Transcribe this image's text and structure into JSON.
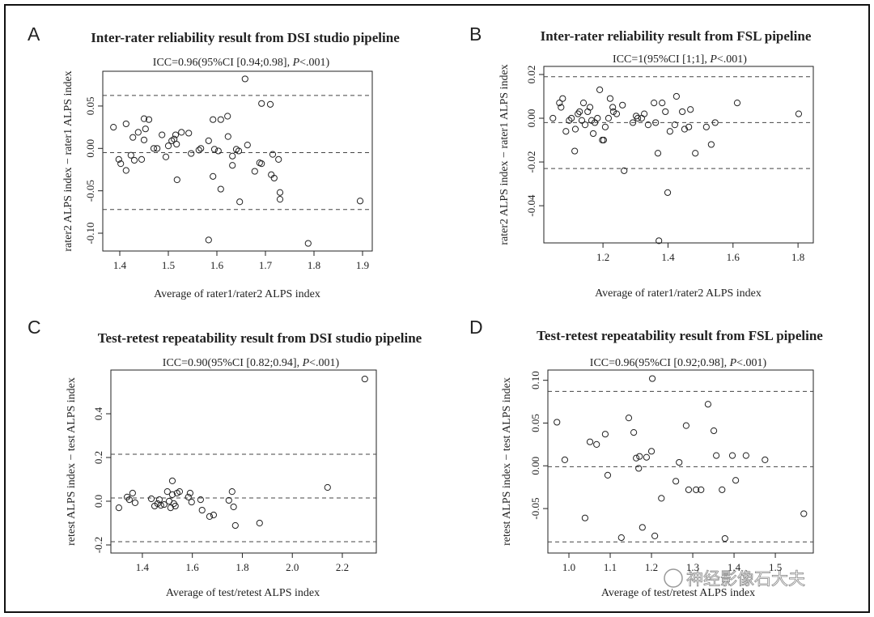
{
  "watermark": "神经影像石大夫",
  "chart_data": [
    {
      "type": "scatter",
      "label": "A",
      "title": "Inter-rater reliability result from DSI studio pipeline",
      "annotation": [
        "ICC=0.96(95%CI [0.94;0.98], ",
        "P",
        "<.001)"
      ],
      "xlabel": "Average of rater1/rater2 ALPS index",
      "ylabel": "rater2 ALPS index − rater1 ALPS index",
      "x": [
        1.387,
        1.398,
        1.402,
        1.413,
        1.413,
        1.423,
        1.427,
        1.43,
        1.438,
        1.445,
        1.45,
        1.45,
        1.453,
        1.46,
        1.47,
        1.477,
        1.487,
        1.495,
        1.5,
        1.507,
        1.512,
        1.515,
        1.517,
        1.518,
        1.527,
        1.542,
        1.547,
        1.563,
        1.567,
        1.583,
        1.583,
        1.592,
        1.592,
        1.595,
        1.603,
        1.608,
        1.608,
        1.622,
        1.623,
        1.632,
        1.632,
        1.64,
        1.645,
        1.647,
        1.658,
        1.663,
        1.678,
        1.688,
        1.692,
        1.692,
        1.71,
        1.712,
        1.718,
        1.715,
        1.727,
        1.73,
        1.73,
        1.788,
        1.895
      ],
      "values": [
        0.025,
        -0.013,
        -0.018,
        0.029,
        -0.026,
        -0.008,
        0.013,
        -0.014,
        0.019,
        -0.013,
        0.035,
        0.01,
        0.023,
        0.034,
        0,
        0,
        0.016,
        -0.01,
        0.003,
        0.009,
        0.011,
        0.016,
        0.005,
        -0.037,
        0.019,
        0.018,
        -0.006,
        -0.002,
        0,
        0.009,
        -0.108,
        -0.033,
        0.034,
        -0.001,
        -0.003,
        -0.048,
        0.034,
        0.038,
        0.014,
        -0.009,
        -0.02,
        -0.001,
        -0.003,
        -0.063,
        0.082,
        0.004,
        -0.027,
        -0.017,
        0.053,
        -0.018,
        0.052,
        -0.031,
        -0.035,
        -0.007,
        -0.013,
        -0.06,
        -0.052,
        -0.112,
        -0.062
      ],
      "hlines": [
        0.0625,
        -0.005,
        -0.072
      ],
      "xlim": [
        1.365,
        1.92
      ],
      "ylim": [
        -0.121,
        0.091
      ],
      "xticks": [
        1.4,
        1.5,
        1.6,
        1.7,
        1.8,
        1.9
      ],
      "yticks": [
        {
          "value": -0.1,
          "label": "-0.10"
        },
        -0.05,
        {
          "value": 0,
          "label": "0.00"
        },
        0.05
      ]
    },
    {
      "type": "scatter",
      "label": "B",
      "title": "Inter-rater reliability result from FSL pipeline",
      "annotation": [
        "ICC=1(95%CI [1;1], ",
        "P",
        "<.001)"
      ],
      "xlabel": "Average of rater1/rater2 ALPS index",
      "ylabel": "rater2 ALPS index − rater1 ALPS index",
      "x": [
        1.046,
        1.066,
        1.071,
        1.076,
        1.086,
        1.096,
        1.103,
        1.113,
        1.115,
        1.123,
        1.128,
        1.135,
        1.14,
        1.145,
        1.153,
        1.16,
        1.165,
        1.17,
        1.175,
        1.183,
        1.19,
        1.198,
        1.202,
        1.207,
        1.217,
        1.222,
        1.23,
        1.232,
        1.242,
        1.26,
        1.265,
        1.292,
        1.302,
        1.307,
        1.319,
        1.327,
        1.339,
        1.357,
        1.362,
        1.369,
        1.372,
        1.382,
        1.392,
        1.399,
        1.406,
        1.421,
        1.426,
        1.444,
        1.451,
        1.464,
        1.469,
        1.484,
        1.518,
        1.533,
        1.545,
        1.613,
        1.802
      ],
      "values": [
        0,
        0.007,
        0.005,
        0.009,
        -0.006,
        -0.001,
        0,
        -0.015,
        -0.005,
        0.002,
        0.003,
        -0.001,
        0.007,
        -0.003,
        0.003,
        0.005,
        -0.001,
        -0.007,
        -0.002,
        0,
        0.013,
        -0.01,
        -0.01,
        -0.004,
        0,
        0.009,
        0.005,
        0.003,
        0.002,
        0.006,
        -0.024,
        -0.002,
        0.001,
        0,
        0,
        0.002,
        -0.003,
        0.007,
        -0.002,
        -0.016,
        -0.056,
        0.007,
        0.003,
        -0.034,
        -0.006,
        -0.003,
        0.01,
        0.003,
        -0.005,
        -0.004,
        0.004,
        -0.016,
        -0.004,
        -0.012,
        -0.002,
        0.007,
        0.002
      ],
      "hlines": [
        0.019,
        -0.002,
        -0.023
      ],
      "xlim": [
        1.018,
        1.847
      ],
      "ylim": [
        -0.057,
        0.0237
      ],
      "xticks": [
        1.2,
        1.4,
        1.6,
        1.8
      ],
      "yticks": [
        -0.04,
        -0.02,
        {
          "value": 0,
          "label": "0.00"
        },
        0.02
      ]
    },
    {
      "type": "scatter",
      "label": "C",
      "title": "Test-retest repeatability result from DSI studio pipeline",
      "annotation": [
        "ICC=0.90(95%CI [0.82;0.94], ",
        "P",
        "<.001)"
      ],
      "xlabel": "Average of test/retest ALPS index",
      "ylabel": "retest ALPS index − test ALPS index",
      "x": [
        1.306,
        1.339,
        1.348,
        1.361,
        1.371,
        1.436,
        1.449,
        1.461,
        1.468,
        1.474,
        1.487,
        1.5,
        1.507,
        1.513,
        1.52,
        1.52,
        1.526,
        1.532,
        1.539,
        1.549,
        1.584,
        1.591,
        1.597,
        1.633,
        1.639,
        1.669,
        1.685,
        1.746,
        1.759,
        1.765,
        1.772,
        1.869,
        2.141,
        2.29
      ],
      "values": [
        -0.03,
        0.019,
        0.007,
        0.037,
        -0.007,
        0.011,
        -0.022,
        -0.011,
        0.007,
        -0.019,
        -0.015,
        0.044,
        0,
        -0.03,
        0.093,
        0.03,
        -0.011,
        -0.022,
        0.037,
        0.044,
        0.019,
        0.037,
        -0.004,
        0.007,
        -0.041,
        -0.07,
        -0.063,
        0.004,
        0.044,
        -0.026,
        -0.111,
        -0.1,
        0.063,
        0.559
      ],
      "hlines": [
        0.215,
        0.015,
        -0.185
      ],
      "xlim": [
        1.274,
        2.336
      ],
      "ylim": [
        -0.237,
        0.6
      ],
      "xticks": [
        1.4,
        1.6,
        1.8,
        {
          "value": 2,
          "label": "2.0"
        },
        2.2
      ],
      "yticks": [
        -0.2,
        {
          "value": 0,
          "label": "0.0"
        },
        0.2,
        0.4
      ]
    },
    {
      "type": "scatter",
      "label": "D",
      "title": "Test-retest repeatability result from FSL pipeline",
      "annotation": [
        "ICC=0.96(95%CI [0.92;0.98], ",
        "P",
        "<.001)"
      ],
      "xlabel": "Average of test/retest ALPS index",
      "ylabel": "retest ALPS index − test ALPS index",
      "x": [
        0.971,
        0.99,
        1.039,
        1.051,
        1.067,
        1.088,
        1.094,
        1.127,
        1.145,
        1.157,
        1.163,
        1.169,
        1.171,
        1.178,
        1.188,
        1.2,
        1.202,
        1.208,
        1.224,
        1.259,
        1.267,
        1.284,
        1.29,
        1.308,
        1.32,
        1.337,
        1.351,
        1.357,
        1.371,
        1.378,
        1.396,
        1.404,
        1.429,
        1.475,
        1.569
      ],
      "values": [
        0.051,
        0.007,
        -0.061,
        0.028,
        0.025,
        0.037,
        -0.011,
        -0.084,
        0.056,
        0.039,
        0.009,
        -0.003,
        0.011,
        -0.072,
        0.01,
        0.017,
        0.102,
        -0.082,
        -0.038,
        -0.018,
        0.004,
        0.047,
        -0.028,
        -0.028,
        -0.028,
        0.072,
        0.041,
        0.012,
        -0.028,
        -0.085,
        0.012,
        -0.017,
        0.012,
        0.007,
        -0.056
      ],
      "hlines": [
        0.087,
        -0.001,
        -0.089
      ],
      "xlim": [
        0.949,
        1.592
      ],
      "ylim": [
        -0.102,
        0.112
      ],
      "xticks": [
        {
          "value": 1,
          "label": "1.0"
        },
        1.1,
        1.2,
        1.3,
        1.4,
        1.5
      ],
      "yticks": [
        -0.05,
        {
          "value": 0,
          "label": "0.00"
        },
        0.05,
        {
          "value": 0.1,
          "label": "0.10"
        }
      ]
    }
  ]
}
